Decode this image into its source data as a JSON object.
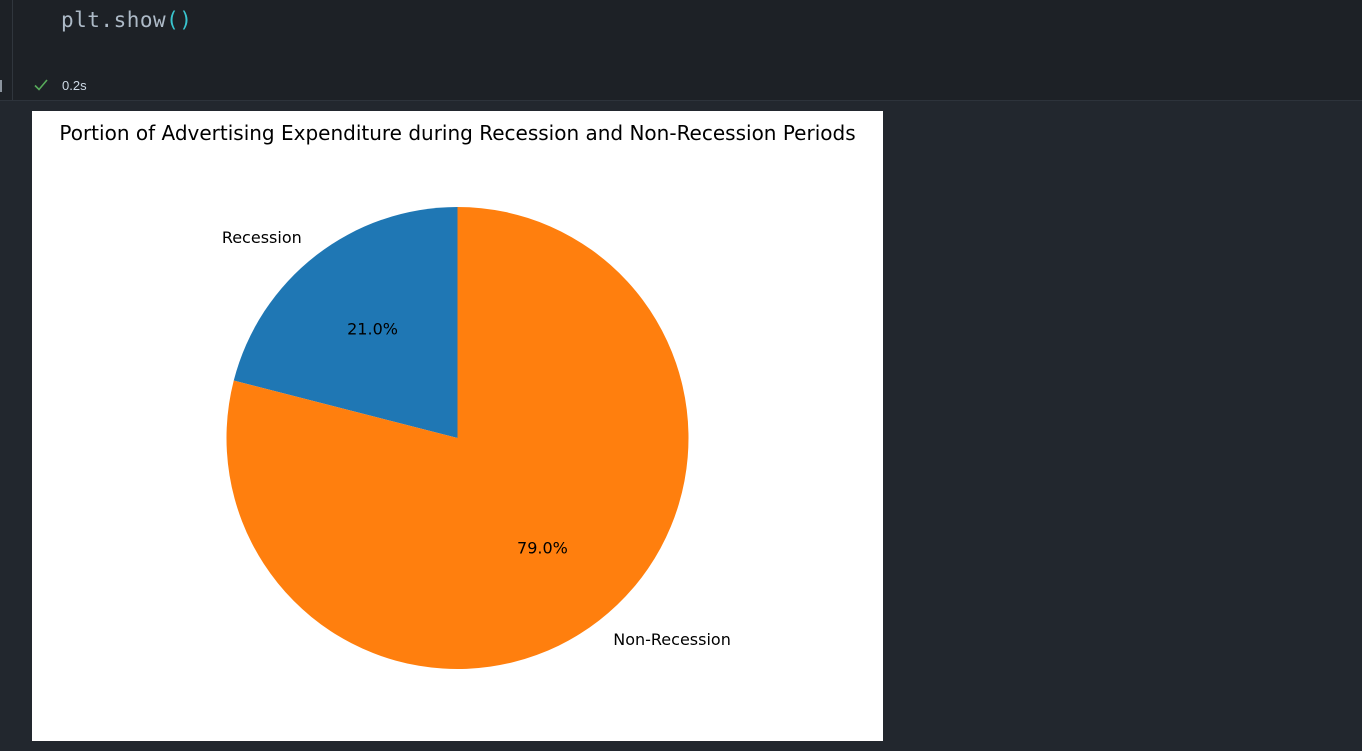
{
  "cell": {
    "code_fn": "plt.show",
    "code_parens": "()",
    "status_icon": "check-icon",
    "exec_time": "0.2s",
    "status_color": "#57ab5a"
  },
  "chart_data": {
    "type": "pie",
    "title": "Portion of Advertising Expenditure during Recession and Non-Recession Periods",
    "categories": [
      "Recession",
      "Non-Recession"
    ],
    "values": [
      21.0,
      79.0
    ],
    "labels_pct": [
      "21.0%",
      "79.0%"
    ],
    "colors": [
      "#1f77b4",
      "#ff7f0e"
    ],
    "start_angle": 90,
    "direction": "counterclockwise"
  }
}
